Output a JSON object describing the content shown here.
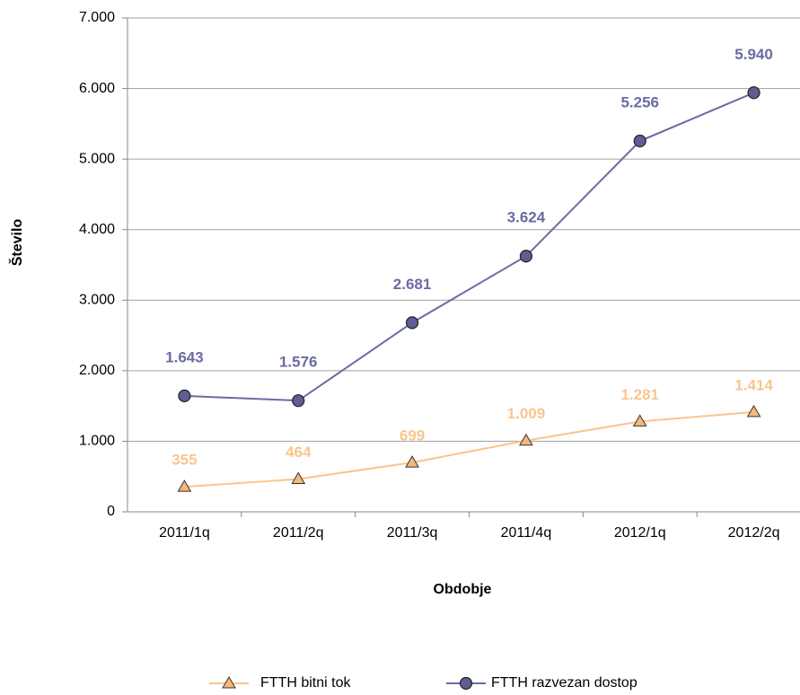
{
  "chart_data": {
    "type": "line",
    "y_label": "Število",
    "x_label": "Obdobje",
    "categories": [
      "2011/1q",
      "2011/2q",
      "2011/3q",
      "2011/4q",
      "2012/1q",
      "2012/2q"
    ],
    "series": [
      {
        "name": "FTTH bitni tok",
        "color": "#f9c58e",
        "marker": "triangle",
        "values": [
          355,
          464,
          699,
          1009,
          1281,
          1414
        ],
        "value_labels": [
          "355",
          "464",
          "699",
          "1.009",
          "1.281",
          "1.414"
        ]
      },
      {
        "name": "FTTH razvezan dostop",
        "color": "#6b6ba3",
        "marker": "circle",
        "values": [
          1643,
          1576,
          2681,
          3624,
          5256,
          5940
        ],
        "value_labels": [
          "1.643",
          "1.576",
          "2.681",
          "3.624",
          "5.256",
          "5.940"
        ]
      }
    ],
    "ylim": [
      0,
      7000
    ],
    "yticks": [
      {
        "value": 0,
        "label": "0"
      },
      {
        "value": 1000,
        "label": "1.000"
      },
      {
        "value": 2000,
        "label": "2.000"
      },
      {
        "value": 3000,
        "label": "3.000"
      },
      {
        "value": 4000,
        "label": "4.000"
      },
      {
        "value": 5000,
        "label": "5.000"
      },
      {
        "value": 6000,
        "label": "6.000"
      },
      {
        "value": 7000,
        "label": "7.000"
      }
    ],
    "grid": true,
    "legend": "bottom"
  }
}
